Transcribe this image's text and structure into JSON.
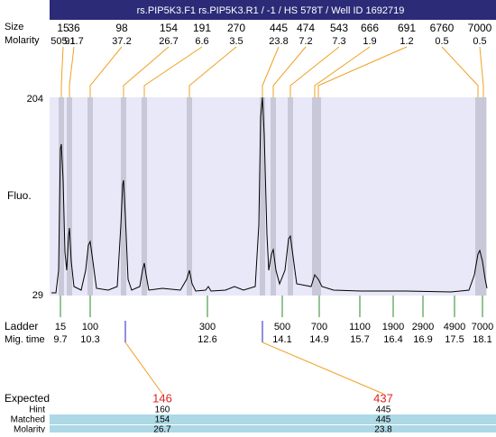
{
  "header": {
    "title": "rs.PIP5K3.F1  rs.PIP5K3.R1 / -1 / HS 578T / Well ID 1692719",
    "size_label": "Size",
    "molarity_label": "Molarity"
  },
  "plot": {
    "y_axis_label": "Fluo.",
    "y_max": 204,
    "y_min": 29
  },
  "peaks": [
    {
      "size": 15,
      "molarity": 505.1
    },
    {
      "size": 36,
      "molarity": 91.7
    },
    {
      "size": 98,
      "molarity": 37.2
    },
    {
      "size": 154,
      "molarity": 26.7
    },
    {
      "size": 191,
      "molarity": 6.6
    },
    {
      "size": 270,
      "molarity": 3.5
    },
    {
      "size": 445,
      "molarity": 23.8
    },
    {
      "size": 474,
      "molarity": 7.2
    },
    {
      "size": 543,
      "molarity": 7.3
    },
    {
      "size": 666,
      "molarity": 1.9
    },
    {
      "size": 691,
      "molarity": 1.2
    },
    {
      "size": 6760,
      "molarity": 0.5
    },
    {
      "size": 7000,
      "molarity": 0.5
    }
  ],
  "ladder": {
    "label": "Ladder",
    "time_label": "Mig. time",
    "sizes": [
      15,
      100,
      300,
      500,
      700,
      1100,
      1900,
      2900,
      4900,
      7000
    ],
    "times": [
      9.7,
      10.3,
      12.6,
      14.1,
      14.9,
      15.7,
      16.4,
      16.9,
      17.5,
      18.1
    ]
  },
  "expected": {
    "label": "Expected",
    "hint_label": "Hint",
    "matched_label": "Matched",
    "molarity_label": "Molarity",
    "items": [
      {
        "expected": 146,
        "hint": 160,
        "matched": 154,
        "molarity": 26.7
      },
      {
        "expected": 437,
        "hint": 445,
        "matched": 445,
        "molarity": 23.8
      }
    ]
  }
}
